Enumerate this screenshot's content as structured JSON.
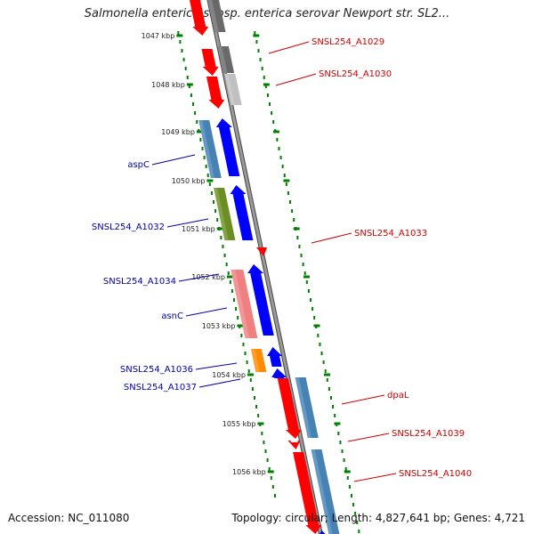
{
  "title": "Salmonella enterica subsp. enterica serovar Newport str. SL2...",
  "footer": {
    "accession": "Accession: NC_011080",
    "topology": "Topology: circular; Length: 4,827,641 bp; Genes: 4,721"
  },
  "colors": {
    "red": "#ff0000",
    "blue": "#0000ff",
    "steelblue": "#4682b4",
    "olive": "#6b8e23",
    "pink": "#f08080",
    "orange": "#ff8c00",
    "darkgray": "#696969",
    "lightgray": "#c0c0c0",
    "tick": "#008000",
    "label_red": "#cc0000",
    "label_blue": "#0000aa"
  },
  "ticks": [
    {
      "label": "1047 kbp"
    },
    {
      "label": "1048 kbp"
    },
    {
      "label": "1049 kbp"
    },
    {
      "label": "1050 kbp"
    },
    {
      "label": "1051 kbp"
    },
    {
      "label": "1052 kbp"
    },
    {
      "label": "1053 kbp"
    },
    {
      "label": "1054 kbp"
    },
    {
      "label": "1055 kbp"
    },
    {
      "label": "1056 kbp"
    }
  ],
  "gene_labels_right": [
    {
      "text": "SNSL254_A1029"
    },
    {
      "text": "SNSL254_A1030"
    },
    {
      "text": "SNSL254_A1033"
    },
    {
      "text": "dpaL"
    },
    {
      "text": "SNSL254_A1039"
    },
    {
      "text": "SNSL254_A1040"
    }
  ],
  "gene_labels_left": [
    {
      "text": "aspC"
    },
    {
      "text": "SNSL254_A1032"
    },
    {
      "text": "SNSL254_A1034"
    },
    {
      "text": "asnC"
    },
    {
      "text": "SNSL254_A1036"
    },
    {
      "text": "SNSL254_A1037"
    }
  ]
}
